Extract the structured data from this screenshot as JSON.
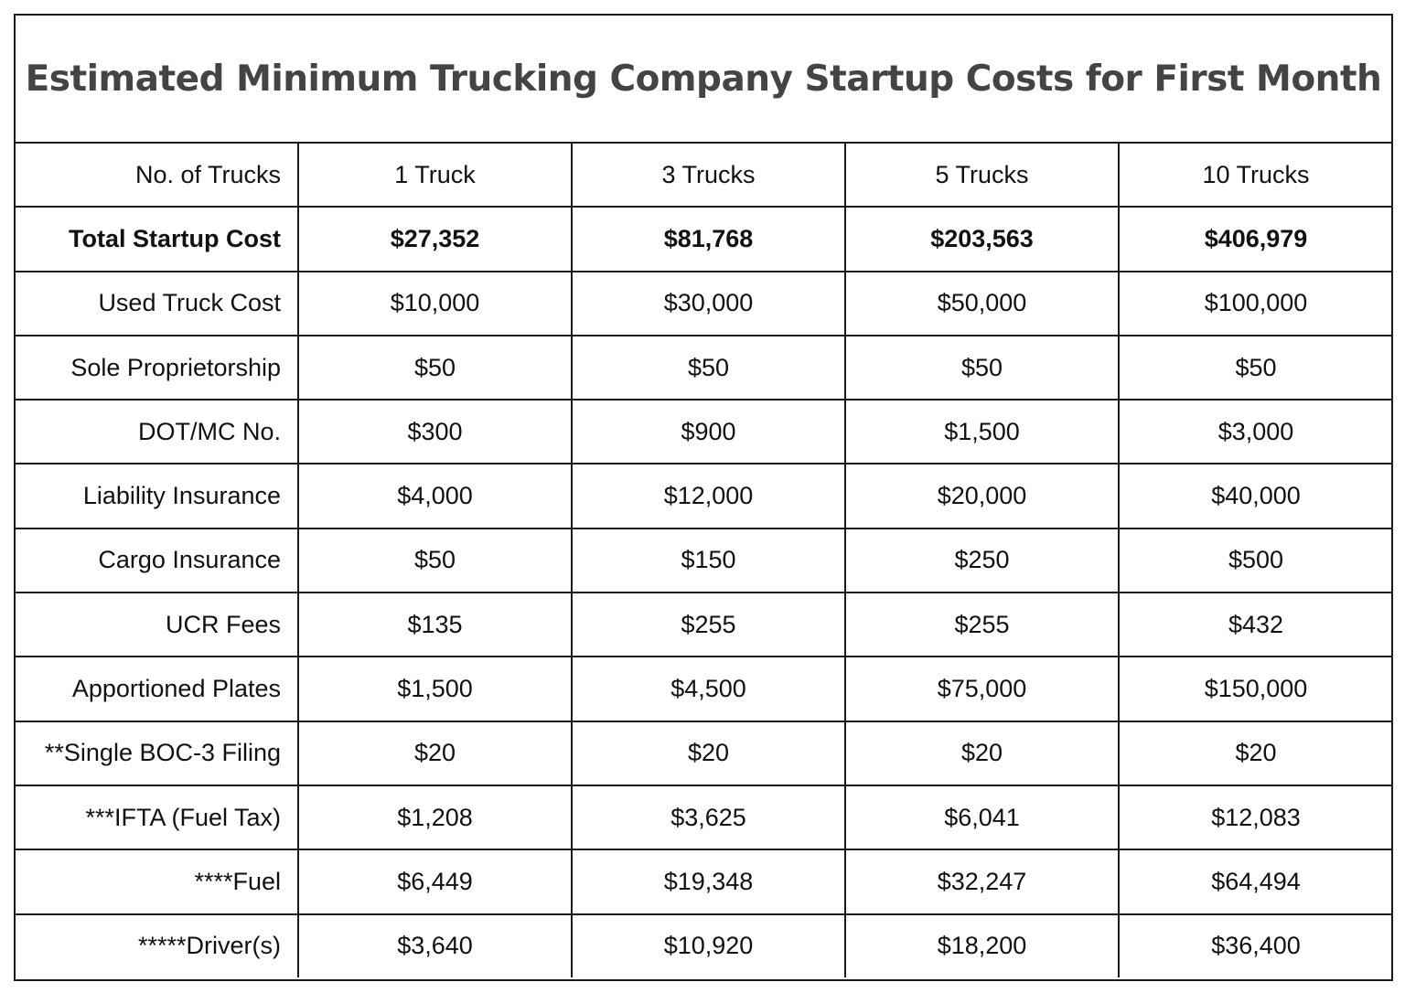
{
  "title": "Estimated Minimum Trucking Company Startup Costs for First Month",
  "header": {
    "label": "No. of Trucks",
    "columns": [
      "1 Truck",
      "3 Trucks",
      "5 Trucks",
      "10 Trucks"
    ]
  },
  "rows": [
    {
      "label": "Total Startup Cost",
      "bold": true,
      "values": [
        "$27,352",
        "$81,768",
        "$203,563",
        "$406,979"
      ]
    },
    {
      "label": "Used Truck Cost",
      "values": [
        "$10,000",
        "$30,000",
        "$50,000",
        "$100,000"
      ]
    },
    {
      "label": "Sole Proprietorship",
      "values": [
        "$50",
        "$50",
        "$50",
        "$50"
      ]
    },
    {
      "label": "DOT/MC No.",
      "values": [
        "$300",
        "$900",
        "$1,500",
        "$3,000"
      ]
    },
    {
      "label": "Liability Insurance",
      "values": [
        "$4,000",
        "$12,000",
        "$20,000",
        "$40,000"
      ]
    },
    {
      "label": "Cargo Insurance",
      "values": [
        "$50",
        "$150",
        "$250",
        "$500"
      ]
    },
    {
      "label": "UCR Fees",
      "values": [
        "$135",
        "$255",
        "$255",
        "$432"
      ]
    },
    {
      "label": "Apportioned Plates",
      "values": [
        "$1,500",
        "$4,500",
        "$75,000",
        "$150,000"
      ]
    },
    {
      "label": "**Single BOC-3 Filing",
      "values": [
        "$20",
        "$20",
        "$20",
        "$20"
      ]
    },
    {
      "label": "***IFTA (Fuel Tax)",
      "values": [
        "$1,208",
        "$3,625",
        "$6,041",
        "$12,083"
      ]
    },
    {
      "label": "****Fuel",
      "values": [
        "$6,449",
        "$19,348",
        "$32,247",
        "$64,494"
      ]
    },
    {
      "label": "*****Driver(s)",
      "values": [
        "$3,640",
        "$10,920",
        "$18,200",
        "$36,400"
      ]
    }
  ]
}
